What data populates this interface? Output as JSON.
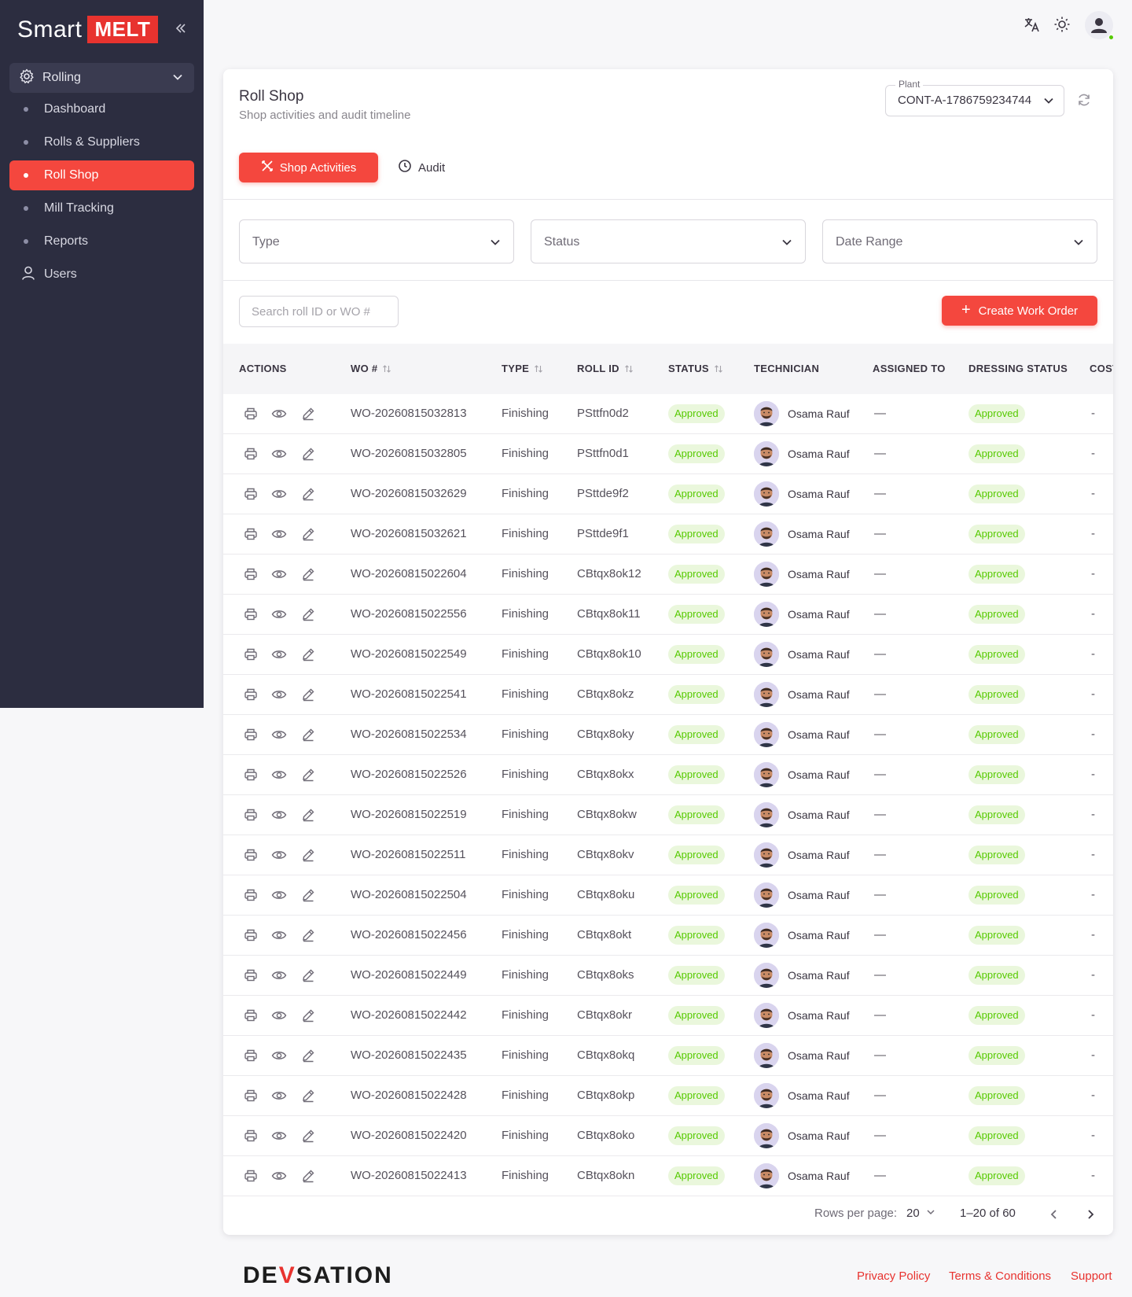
{
  "brand": {
    "name": "Smart",
    "highlight": "MELT",
    "accent_color": "#e8332f"
  },
  "sidebar": {
    "group": {
      "label": "Rolling",
      "icon": "gear-icon"
    },
    "items": [
      {
        "label": "Dashboard",
        "active": false
      },
      {
        "label": "Rolls & Suppliers",
        "active": false
      },
      {
        "label": "Roll Shop",
        "active": true
      },
      {
        "label": "Mill Tracking",
        "active": false
      },
      {
        "label": "Reports",
        "active": false
      }
    ],
    "users": {
      "label": "Users",
      "icon": "user-icon"
    }
  },
  "page": {
    "title": "Roll Shop",
    "subtitle": "Shop activities and audit timeline",
    "plant": {
      "label": "Plant",
      "value": "CONT-A-1786759234744"
    }
  },
  "tabs": [
    {
      "label": "Shop Activities",
      "icon": "tools-icon",
      "active": true
    },
    {
      "label": "Audit",
      "icon": "clock-icon",
      "active": false
    }
  ],
  "filters": {
    "type": "Type",
    "status": "Status",
    "date_range": "Date Range"
  },
  "search": {
    "placeholder": "Search roll ID or WO #"
  },
  "create_button": "Create Work Order",
  "table": {
    "headers": {
      "actions": "ACTIONS",
      "wo": "WO #",
      "type": "TYPE",
      "roll_id": "ROLL ID",
      "status": "STATUS",
      "technician": "TECHNICIAN",
      "assigned_to": "ASSIGNED TO",
      "dressing_status": "DRESSING STATUS",
      "cost": "COST"
    },
    "rows": [
      {
        "wo": "WO-20260815032813",
        "type": "Finishing",
        "roll_id": "PSttfn0d2",
        "status": "Approved",
        "technician": "Osama Rauf",
        "assigned_to": "—",
        "dressing_status": "Approved",
        "cost": "-"
      },
      {
        "wo": "WO-20260815032805",
        "type": "Finishing",
        "roll_id": "PSttfn0d1",
        "status": "Approved",
        "technician": "Osama Rauf",
        "assigned_to": "—",
        "dressing_status": "Approved",
        "cost": "-"
      },
      {
        "wo": "WO-20260815032629",
        "type": "Finishing",
        "roll_id": "PSttde9f2",
        "status": "Approved",
        "technician": "Osama Rauf",
        "assigned_to": "—",
        "dressing_status": "Approved",
        "cost": "-"
      },
      {
        "wo": "WO-20260815032621",
        "type": "Finishing",
        "roll_id": "PSttde9f1",
        "status": "Approved",
        "technician": "Osama Rauf",
        "assigned_to": "—",
        "dressing_status": "Approved",
        "cost": "-"
      },
      {
        "wo": "WO-20260815022604",
        "type": "Finishing",
        "roll_id": "CBtqx8ok12",
        "status": "Approved",
        "technician": "Osama Rauf",
        "assigned_to": "—",
        "dressing_status": "Approved",
        "cost": "-"
      },
      {
        "wo": "WO-20260815022556",
        "type": "Finishing",
        "roll_id": "CBtqx8ok11",
        "status": "Approved",
        "technician": "Osama Rauf",
        "assigned_to": "—",
        "dressing_status": "Approved",
        "cost": "-"
      },
      {
        "wo": "WO-20260815022549",
        "type": "Finishing",
        "roll_id": "CBtqx8ok10",
        "status": "Approved",
        "technician": "Osama Rauf",
        "assigned_to": "—",
        "dressing_status": "Approved",
        "cost": "-"
      },
      {
        "wo": "WO-20260815022541",
        "type": "Finishing",
        "roll_id": "CBtqx8okz",
        "status": "Approved",
        "technician": "Osama Rauf",
        "assigned_to": "—",
        "dressing_status": "Approved",
        "cost": "-"
      },
      {
        "wo": "WO-20260815022534",
        "type": "Finishing",
        "roll_id": "CBtqx8oky",
        "status": "Approved",
        "technician": "Osama Rauf",
        "assigned_to": "—",
        "dressing_status": "Approved",
        "cost": "-"
      },
      {
        "wo": "WO-20260815022526",
        "type": "Finishing",
        "roll_id": "CBtqx8okx",
        "status": "Approved",
        "technician": "Osama Rauf",
        "assigned_to": "—",
        "dressing_status": "Approved",
        "cost": "-"
      },
      {
        "wo": "WO-20260815022519",
        "type": "Finishing",
        "roll_id": "CBtqx8okw",
        "status": "Approved",
        "technician": "Osama Rauf",
        "assigned_to": "—",
        "dressing_status": "Approved",
        "cost": "-"
      },
      {
        "wo": "WO-20260815022511",
        "type": "Finishing",
        "roll_id": "CBtqx8okv",
        "status": "Approved",
        "technician": "Osama Rauf",
        "assigned_to": "—",
        "dressing_status": "Approved",
        "cost": "-"
      },
      {
        "wo": "WO-20260815022504",
        "type": "Finishing",
        "roll_id": "CBtqx8oku",
        "status": "Approved",
        "technician": "Osama Rauf",
        "assigned_to": "—",
        "dressing_status": "Approved",
        "cost": "-"
      },
      {
        "wo": "WO-20260815022456",
        "type": "Finishing",
        "roll_id": "CBtqx8okt",
        "status": "Approved",
        "technician": "Osama Rauf",
        "assigned_to": "—",
        "dressing_status": "Approved",
        "cost": "-"
      },
      {
        "wo": "WO-20260815022449",
        "type": "Finishing",
        "roll_id": "CBtqx8oks",
        "status": "Approved",
        "technician": "Osama Rauf",
        "assigned_to": "—",
        "dressing_status": "Approved",
        "cost": "-"
      },
      {
        "wo": "WO-20260815022442",
        "type": "Finishing",
        "roll_id": "CBtqx8okr",
        "status": "Approved",
        "technician": "Osama Rauf",
        "assigned_to": "—",
        "dressing_status": "Approved",
        "cost": "-"
      },
      {
        "wo": "WO-20260815022435",
        "type": "Finishing",
        "roll_id": "CBtqx8okq",
        "status": "Approved",
        "technician": "Osama Rauf",
        "assigned_to": "—",
        "dressing_status": "Approved",
        "cost": "-"
      },
      {
        "wo": "WO-20260815022428",
        "type": "Finishing",
        "roll_id": "CBtqx8okp",
        "status": "Approved",
        "technician": "Osama Rauf",
        "assigned_to": "—",
        "dressing_status": "Approved",
        "cost": "-"
      },
      {
        "wo": "WO-20260815022420",
        "type": "Finishing",
        "roll_id": "CBtqx8oko",
        "status": "Approved",
        "technician": "Osama Rauf",
        "assigned_to": "—",
        "dressing_status": "Approved",
        "cost": "-"
      },
      {
        "wo": "WO-20260815022413",
        "type": "Finishing",
        "roll_id": "CBtqx8okn",
        "status": "Approved",
        "technician": "Osama Rauf",
        "assigned_to": "—",
        "dressing_status": "Approved",
        "cost": "-"
      }
    ]
  },
  "pagination": {
    "rows_per_page_label": "Rows per page:",
    "rows_per_page": "20",
    "range": "1–20 of 60"
  },
  "footer": {
    "logo_left": "DE",
    "logo_mark": "V",
    "logo_right": "SATION",
    "links": [
      "Privacy Policy",
      "Terms & Conditions",
      "Support"
    ]
  },
  "colors": {
    "primary": "#f4473e",
    "sidebar_bg": "#2c2d40",
    "success": "#56ca00"
  }
}
